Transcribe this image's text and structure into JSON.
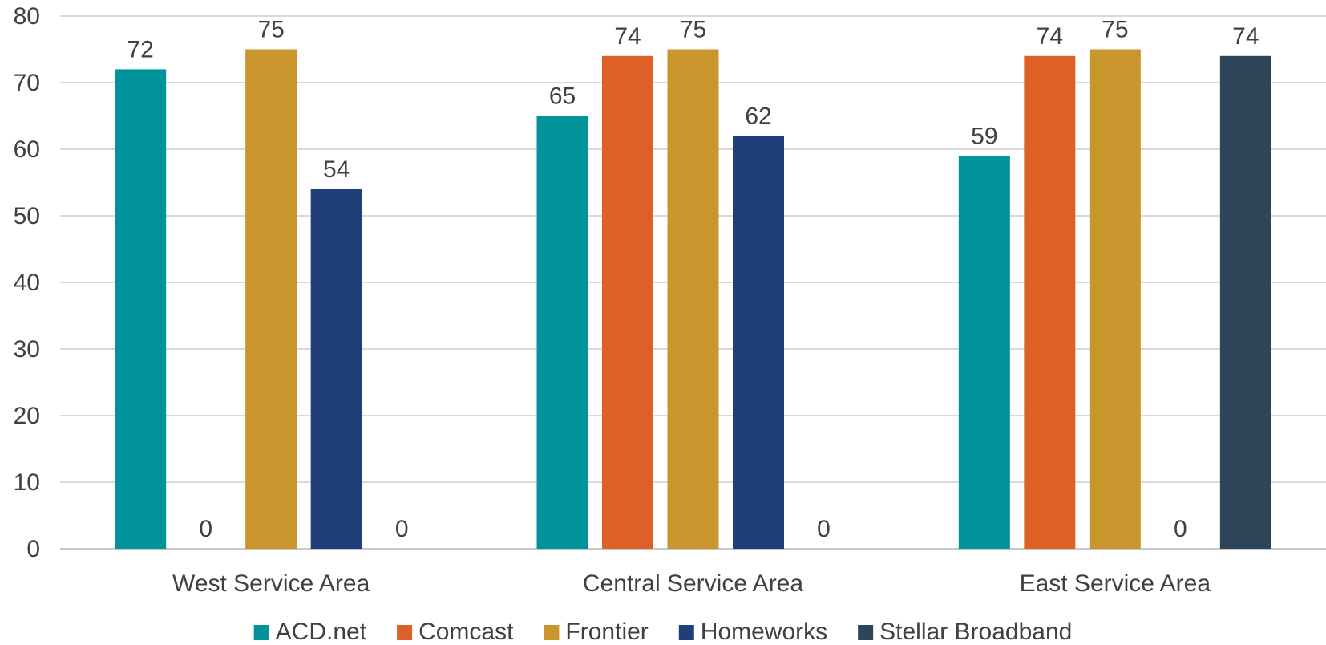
{
  "chart_data": {
    "type": "bar",
    "title": "",
    "xlabel": "",
    "ylabel": "",
    "ylim": [
      0,
      80
    ],
    "yticks": [
      0,
      10,
      20,
      30,
      40,
      50,
      60,
      70,
      80
    ],
    "grid": true,
    "legend_position": "bottom",
    "categories": [
      "West Service Area",
      "Central Service Area",
      "East Service Area"
    ],
    "series": [
      {
        "name": "ACD.net",
        "color": "#00939a",
        "values": [
          72,
          65,
          59
        ]
      },
      {
        "name": "Comcast",
        "color": "#de6027",
        "values": [
          0,
          74,
          74
        ]
      },
      {
        "name": "Frontier",
        "color": "#c9962e",
        "values": [
          75,
          75,
          75
        ]
      },
      {
        "name": "Homeworks",
        "color": "#1f3e7a",
        "values": [
          54,
          62,
          0
        ]
      },
      {
        "name": "Stellar Broadband",
        "color": "#2d4459",
        "values": [
          0,
          0,
          74
        ]
      }
    ]
  }
}
